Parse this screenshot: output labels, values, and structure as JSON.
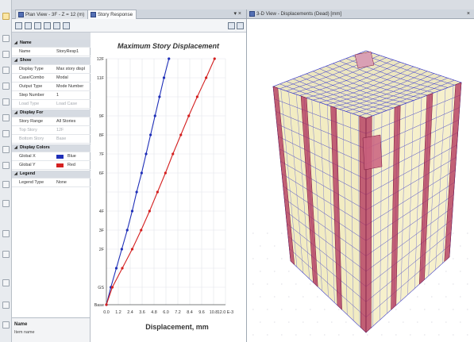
{
  "tabs": [
    {
      "label": "Plan View - 3F - Z = 12 (m)",
      "icon": "plan-view-icon",
      "active": false
    },
    {
      "label": "Story Response",
      "icon": "story-response-icon",
      "active": true
    }
  ],
  "view3d": {
    "title": "3-D View  - Displacements (Dead)  [mm]"
  },
  "properties": [
    {
      "type": "cat",
      "key": "Name"
    },
    {
      "type": "row",
      "key": "Name",
      "value": "StoryResp1"
    },
    {
      "type": "cat",
      "key": "Show"
    },
    {
      "type": "row",
      "key": "Display Type",
      "value": "Max story displ"
    },
    {
      "type": "row",
      "key": "Case/Combo",
      "value": "Modal"
    },
    {
      "type": "row",
      "key": "Output Type",
      "value": "Mode Number"
    },
    {
      "type": "row",
      "key": "Step Number",
      "value": "1"
    },
    {
      "type": "dis",
      "key": "Load Type",
      "value": "Load Case"
    },
    {
      "type": "cat",
      "key": "Display For"
    },
    {
      "type": "row",
      "key": "Story Range",
      "value": "All Stories"
    },
    {
      "type": "dis",
      "key": "Top Story",
      "value": "12F"
    },
    {
      "type": "dis",
      "key": "Bottom Story",
      "value": "Base"
    },
    {
      "type": "cat",
      "key": "Display Colors"
    },
    {
      "type": "color",
      "key": "Global X",
      "value": "Blue",
      "color": "#1f2fb8"
    },
    {
      "type": "color",
      "key": "Global Y",
      "value": "Red",
      "color": "#d42020"
    },
    {
      "type": "cat",
      "key": "Legend"
    },
    {
      "type": "row",
      "key": "Legend Type",
      "value": "None"
    }
  ],
  "description": {
    "title": "Name",
    "text": "Item name"
  },
  "chart_data": {
    "type": "line",
    "title": "Maximum Story Displacement",
    "xlabel": "Displacement, mm",
    "xticks": [
      "0.0",
      "1.2",
      "2.4",
      "3.6",
      "4.8",
      "6.0",
      "7.2",
      "8.4",
      "9.6",
      "10.8",
      "12.0 E-3"
    ],
    "xlim": [
      0,
      12
    ],
    "y_stories": [
      "Base",
      "GS",
      "1F",
      "2F",
      "3F",
      "4F",
      "5F",
      "6F",
      "7F",
      "8F",
      "9F",
      "10F",
      "11F",
      "12F"
    ],
    "yticks_shown": [
      "12F",
      "11F",
      "9F",
      "8F",
      "7F",
      "6F",
      "4F",
      "3F",
      "2F",
      "GS",
      "Base"
    ],
    "series": [
      {
        "name": "Global X",
        "color": "#1f2fb8",
        "values": [
          0,
          0.45,
          1.0,
          1.55,
          2.1,
          2.6,
          3.05,
          3.55,
          4.0,
          4.45,
          4.9,
          5.35,
          5.8,
          6.3
        ]
      },
      {
        "name": "Global Y",
        "color": "#d42020",
        "values": [
          0,
          0.6,
          1.6,
          2.6,
          3.5,
          4.35,
          5.15,
          5.95,
          6.7,
          7.5,
          8.3,
          9.15,
          10.05,
          10.9
        ]
      }
    ]
  }
}
